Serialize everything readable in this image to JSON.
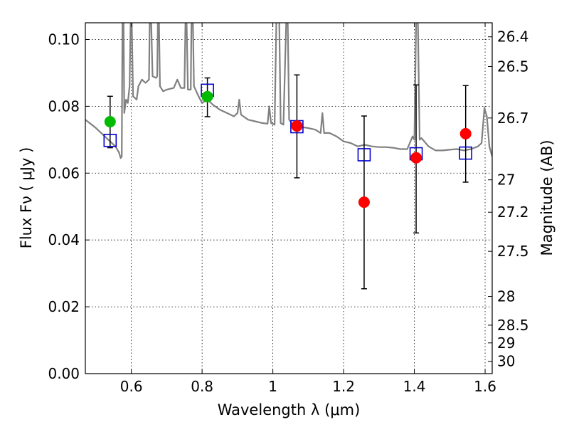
{
  "chart_data": {
    "type": "scatter",
    "xlabel": "Wavelength  λ (μm)",
    "ylabel_left": "Flux  Fν  ( μJy )",
    "ylabel_right": "Magnitude (AB)",
    "xlim": [
      0.47,
      1.62
    ],
    "ylim": [
      0.0,
      0.105
    ],
    "x_ticks": [
      0.6,
      0.8,
      1.0,
      1.2,
      1.4,
      1.6
    ],
    "x_tick_labels": [
      "0.6",
      "0.8",
      "1",
      "1.2",
      "1.4",
      "1.6"
    ],
    "y_ticks": [
      0.0,
      0.02,
      0.04,
      0.06,
      0.08,
      0.1
    ],
    "y_tick_labels": [
      "0.00",
      "0.02",
      "0.04",
      "0.06",
      "0.08",
      "0.10"
    ],
    "right_ticks": [
      {
        "label": "26.4",
        "flux": 0.1008
      },
      {
        "label": "26.5",
        "flux": 0.0919
      },
      {
        "label": "26.7",
        "flux": 0.0765
      },
      {
        "label": "27",
        "flux": 0.058
      },
      {
        "label": "27.2",
        "flux": 0.0483
      },
      {
        "label": "27.5",
        "flux": 0.0366
      },
      {
        "label": "28",
        "flux": 0.0231
      },
      {
        "label": "28.5",
        "flux": 0.0145
      },
      {
        "label": "29",
        "flux": 0.0092
      },
      {
        "label": "30",
        "flux": 0.0037
      }
    ],
    "grid": true,
    "colors": {
      "model": "#808080",
      "model_points": "#0000cc",
      "observed_optical": "#00bb00",
      "observed_nir": "#ff0000",
      "errorbar": "#000000"
    },
    "model_points": [
      {
        "x": 0.54,
        "y": 0.0698
      },
      {
        "x": 0.815,
        "y": 0.0848
      },
      {
        "x": 1.068,
        "y": 0.0739
      },
      {
        "x": 1.258,
        "y": 0.0655
      },
      {
        "x": 1.405,
        "y": 0.0658
      },
      {
        "x": 1.545,
        "y": 0.066
      }
    ],
    "observed_points": [
      {
        "x": 0.54,
        "y": 0.0754,
        "err_low": 0.0676,
        "err_high": 0.083,
        "band": "optical"
      },
      {
        "x": 0.815,
        "y": 0.0829,
        "err_low": 0.0769,
        "err_high": 0.0885,
        "band": "optical"
      },
      {
        "x": 1.068,
        "y": 0.0741,
        "err_low": 0.0586,
        "err_high": 0.0894,
        "band": "nir"
      },
      {
        "x": 1.258,
        "y": 0.0513,
        "err_low": 0.0254,
        "err_high": 0.0771,
        "band": "nir"
      },
      {
        "x": 1.405,
        "y": 0.0646,
        "err_low": 0.0421,
        "err_high": 0.0864,
        "band": "nir"
      },
      {
        "x": 1.545,
        "y": 0.0718,
        "err_low": 0.0573,
        "err_high": 0.0862,
        "band": "nir"
      }
    ],
    "model_spectrum": [
      [
        0.47,
        0.076
      ],
      [
        0.5,
        0.0735
      ],
      [
        0.53,
        0.0705
      ],
      [
        0.555,
        0.068
      ],
      [
        0.565,
        0.0662
      ],
      [
        0.57,
        0.0645
      ],
      [
        0.573,
        0.065
      ],
      [
        0.575,
        0.106
      ],
      [
        0.578,
        0.106
      ],
      [
        0.58,
        0.078
      ],
      [
        0.585,
        0.082
      ],
      [
        0.59,
        0.081
      ],
      [
        0.595,
        0.086
      ],
      [
        0.598,
        0.106
      ],
      [
        0.601,
        0.106
      ],
      [
        0.605,
        0.083
      ],
      [
        0.615,
        0.082
      ],
      [
        0.62,
        0.086
      ],
      [
        0.63,
        0.088
      ],
      [
        0.64,
        0.087
      ],
      [
        0.65,
        0.088
      ],
      [
        0.652,
        0.106
      ],
      [
        0.656,
        0.106
      ],
      [
        0.66,
        0.089
      ],
      [
        0.67,
        0.0885
      ],
      [
        0.673,
        0.089
      ],
      [
        0.675,
        0.106
      ],
      [
        0.678,
        0.106
      ],
      [
        0.681,
        0.086
      ],
      [
        0.69,
        0.0845
      ],
      [
        0.7,
        0.085
      ],
      [
        0.72,
        0.0855
      ],
      [
        0.73,
        0.088
      ],
      [
        0.74,
        0.0855
      ],
      [
        0.75,
        0.0855
      ],
      [
        0.753,
        0.106
      ],
      [
        0.756,
        0.106
      ],
      [
        0.76,
        0.085
      ],
      [
        0.768,
        0.085
      ],
      [
        0.77,
        0.106
      ],
      [
        0.774,
        0.106
      ],
      [
        0.777,
        0.086
      ],
      [
        0.79,
        0.083
      ],
      [
        0.8,
        0.081
      ],
      [
        0.815,
        0.082
      ],
      [
        0.83,
        0.0805
      ],
      [
        0.85,
        0.079
      ],
      [
        0.87,
        0.078
      ],
      [
        0.89,
        0.077
      ],
      [
        0.9,
        0.078
      ],
      [
        0.905,
        0.082
      ],
      [
        0.91,
        0.0775
      ],
      [
        0.93,
        0.076
      ],
      [
        0.95,
        0.0755
      ],
      [
        0.97,
        0.075
      ],
      [
        0.985,
        0.0748
      ],
      [
        0.99,
        0.08
      ],
      [
        0.995,
        0.075
      ],
      [
        1.005,
        0.0745
      ],
      [
        1.01,
        0.106
      ],
      [
        1.018,
        0.106
      ],
      [
        1.022,
        0.075
      ],
      [
        1.03,
        0.0745
      ],
      [
        1.038,
        0.106
      ],
      [
        1.042,
        0.106
      ],
      [
        1.046,
        0.076
      ],
      [
        1.06,
        0.074
      ],
      [
        1.08,
        0.0738
      ],
      [
        1.1,
        0.0735
      ],
      [
        1.12,
        0.073
      ],
      [
        1.135,
        0.072
      ],
      [
        1.14,
        0.078
      ],
      [
        1.145,
        0.072
      ],
      [
        1.16,
        0.072
      ],
      [
        1.18,
        0.071
      ],
      [
        1.2,
        0.0695
      ],
      [
        1.22,
        0.069
      ],
      [
        1.24,
        0.068
      ],
      [
        1.26,
        0.0685
      ],
      [
        1.28,
        0.068
      ],
      [
        1.3,
        0.0678
      ],
      [
        1.32,
        0.0678
      ],
      [
        1.34,
        0.0676
      ],
      [
        1.36,
        0.0672
      ],
      [
        1.38,
        0.0672
      ],
      [
        1.395,
        0.071
      ],
      [
        1.4,
        0.07
      ],
      [
        1.405,
        0.106
      ],
      [
        1.41,
        0.106
      ],
      [
        1.415,
        0.07
      ],
      [
        1.42,
        0.0705
      ],
      [
        1.44,
        0.068
      ],
      [
        1.46,
        0.0668
      ],
      [
        1.48,
        0.0668
      ],
      [
        1.5,
        0.067
      ],
      [
        1.52,
        0.0672
      ],
      [
        1.54,
        0.0668
      ],
      [
        1.56,
        0.0672
      ],
      [
        1.58,
        0.068
      ],
      [
        1.59,
        0.069
      ],
      [
        1.598,
        0.0795
      ],
      [
        1.605,
        0.077
      ],
      [
        1.612,
        0.068
      ],
      [
        1.62,
        0.065
      ]
    ]
  }
}
